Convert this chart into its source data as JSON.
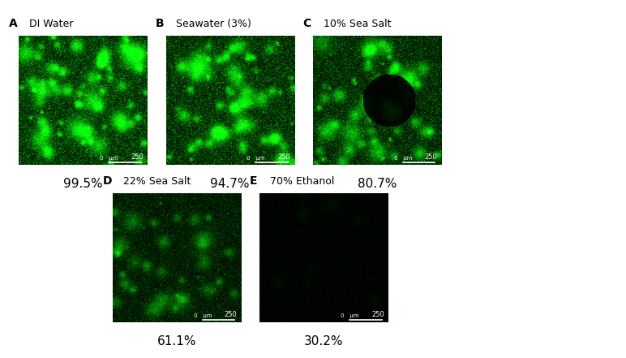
{
  "panels": [
    {
      "label": "A",
      "title": "DI Water",
      "percentage": "99.5%",
      "brightness": 0.85,
      "row": 0,
      "col": 0
    },
    {
      "label": "B",
      "title": "Seawater (3%)",
      "percentage": "94.7%",
      "brightness": 0.75,
      "row": 0,
      "col": 1
    },
    {
      "label": "C",
      "title": "10% Sea Salt",
      "percentage": "80.7%",
      "brightness": 0.65,
      "row": 0,
      "col": 2
    },
    {
      "label": "D",
      "title": "22% Sea Salt",
      "percentage": "61.1%",
      "brightness": 0.4,
      "row": 1,
      "col": 0
    },
    {
      "label": "E",
      "title": "70% Ethanol",
      "percentage": "30.2%",
      "brightness": 0.05,
      "row": 1,
      "col": 1
    }
  ],
  "background_color": "#ffffff",
  "image_bg": "#000000",
  "scale_text": "250",
  "scale_color": "#ffffff",
  "label_color": "#000000",
  "title_fontsize": 9,
  "label_fontsize": 10,
  "pct_fontsize": 11,
  "fig_width": 7.72,
  "fig_height": 4.41,
  "seed": 42
}
